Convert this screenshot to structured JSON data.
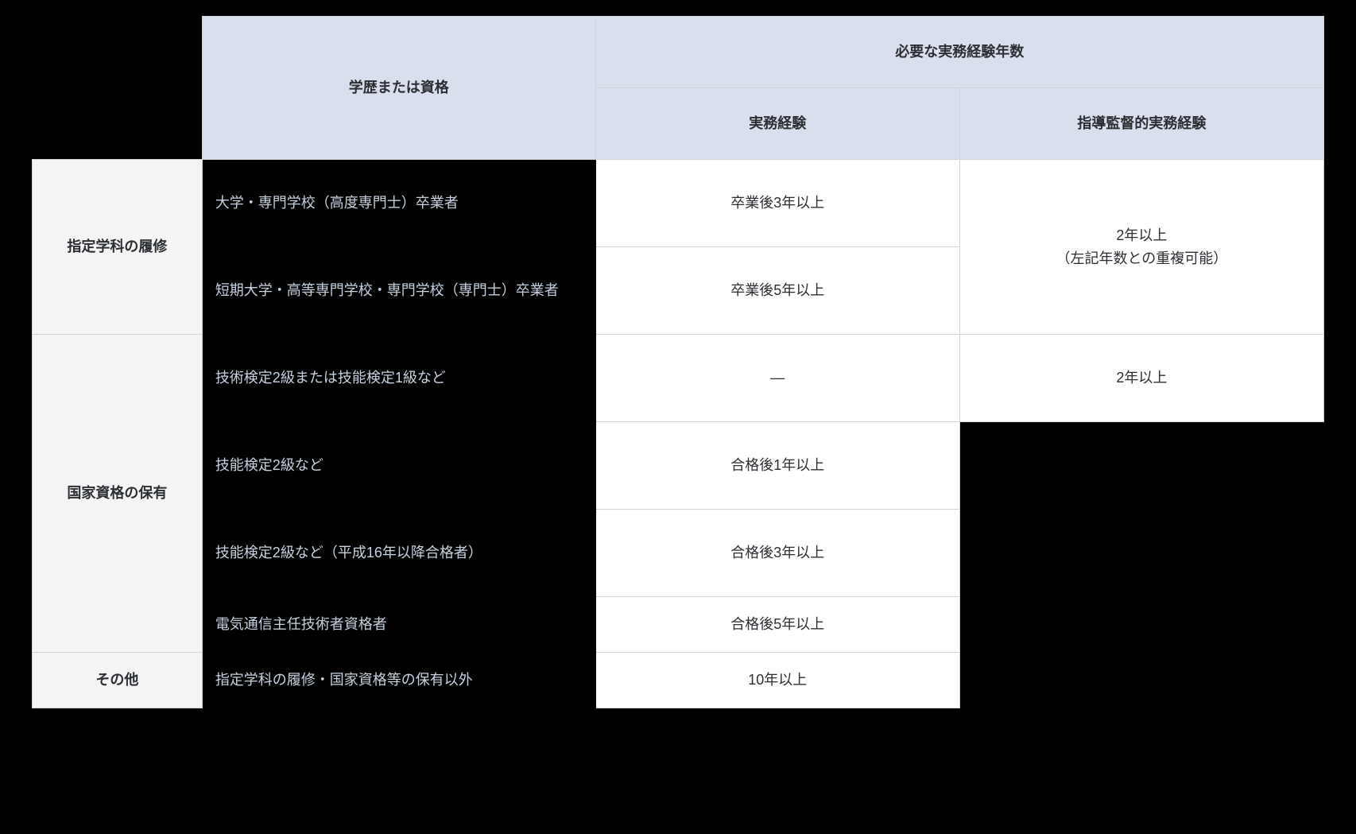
{
  "headers": {
    "col_qual": "学歴または資格",
    "col_years_group": "必要な実務経験年数",
    "col_practical": "実務経験",
    "col_supervisory": "指導監督的実務経験"
  },
  "row_categories": {
    "designated_course": "指定学科の履修",
    "national_cert": "国家資格の保有",
    "other": "その他"
  },
  "cells": {
    "dc_r1_qual": "大学・専門学校（高度専門士）卒業者",
    "dc_r1_practical": "卒業後3年以上",
    "dc_r2_qual": "短期大学・高等専門学校・専門学校（専門士）卒業者",
    "dc_r2_practical": "卒業後5年以上",
    "dc_supervisory_l1": "2年以上",
    "dc_supervisory_l2": "（左記年数との重複可能）",
    "nc_r1_qual": "技術検定2級または技能検定1級など",
    "nc_r1_practical": "―",
    "nc_r1_supervisory": "2年以上",
    "nc_r2_qual": "技能検定2級など",
    "nc_r2_practical": "合格後1年以上",
    "nc_r3_qual": "技能検定2級など（平成16年以降合格者）",
    "nc_r3_practical": "合格後3年以上",
    "nc_r4_qual": "電気通信主任技術者資格者",
    "nc_r4_practical": "合格後5年以上",
    "other_qual": "指定学科の履修・国家資格等の保有以外",
    "other_practical": "10年以上"
  }
}
